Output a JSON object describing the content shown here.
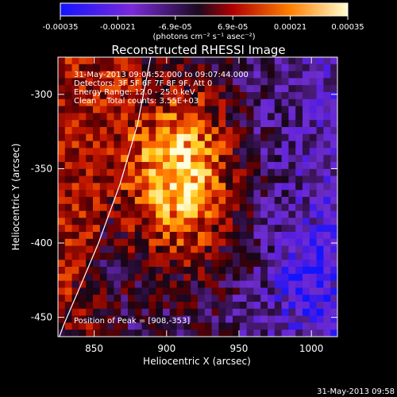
{
  "chart_data": {
    "type": "heatmap",
    "title": "Reconstructed RHESSI Image",
    "xlabel": "Heliocentric X (arcsec)",
    "ylabel": "Heliocentric Y (arcsec)",
    "xlim": [
      825,
      1018
    ],
    "ylim": [
      -463,
      -275
    ],
    "x_ticks": [
      850,
      900,
      950,
      1000
    ],
    "y_ticks": [
      -300,
      -350,
      -400,
      -450
    ],
    "colorbar": {
      "range": [
        -0.00035,
        0.00035
      ],
      "ticks": [
        "-0.00035",
        "-0.00021",
        "-6.9e-05",
        "6.9e-05",
        "0.00021",
        "0.00035"
      ],
      "unit_label": "(photons cm⁻² s⁻¹ asec⁻²)"
    },
    "annotations": {
      "time_range": "31-May-2013 09:04:52.000 to 09:07:44.000",
      "detectors": "Detectors: 3F 5F 6F 7F 8F 9F, Att 0",
      "energy": "Energy Range: 12.0 - 25.0 keV",
      "clean": "Clean    Total counts: 3.55E+03",
      "peak": "Position of Peak = [908,-353]"
    },
    "peak": {
      "x": 908,
      "y": -353
    },
    "limb_curve": [
      [
        889,
        -275
      ],
      [
        880,
        -320
      ],
      [
        868,
        -360
      ],
      [
        853,
        -400
      ],
      [
        840,
        -430
      ],
      [
        829,
        -455
      ],
      [
        826,
        -463
      ]
    ],
    "timestamp": "31-May-2013 09:58"
  },
  "palette": [
    "#1414ff",
    "#6a1adc",
    "#6b2bd8",
    "#3a1040",
    "#6a0000",
    "#d02000",
    "#ff7000",
    "#ffd000",
    "#ffffe6"
  ]
}
